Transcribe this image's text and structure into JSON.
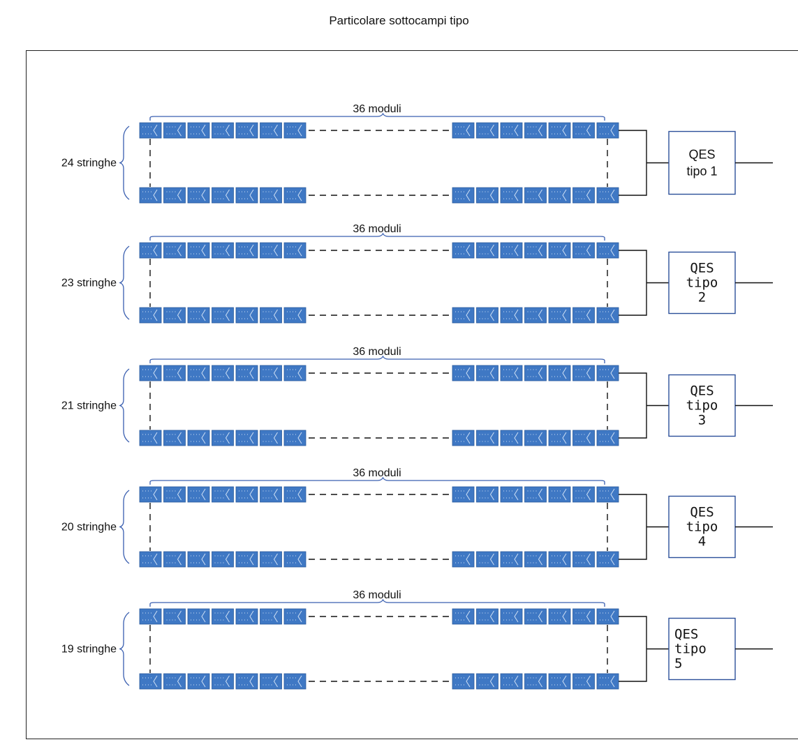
{
  "title": "Particolare sottocampi tipo",
  "colors": {
    "module_fill": "#3f78c4",
    "brace": "#3a5fb0",
    "box_border": "#2c4f9a",
    "wire": "#111111"
  },
  "icon_names": [
    "pv-module-icon"
  ],
  "subfields": [
    {
      "strings_label": "24 stringhe",
      "modules_label": "36 moduli",
      "qes_lines": [
        "QES",
        "tipo 1"
      ]
    },
    {
      "strings_label": "23 stringhe",
      "modules_label": "36 moduli",
      "qes_lines": [
        "QES",
        "tipo",
        "2"
      ]
    },
    {
      "strings_label": "21 stringhe",
      "modules_label": "36 moduli",
      "qes_lines": [
        "QES",
        "tipo",
        "3"
      ]
    },
    {
      "strings_label": "20 stringhe",
      "modules_label": "36 moduli",
      "qes_lines": [
        "QES",
        "tipo",
        "4"
      ]
    },
    {
      "strings_label": "19 stringhe",
      "modules_label": "36 moduli",
      "qes_lines": [
        "QES",
        "tipo",
        "5"
      ]
    }
  ]
}
